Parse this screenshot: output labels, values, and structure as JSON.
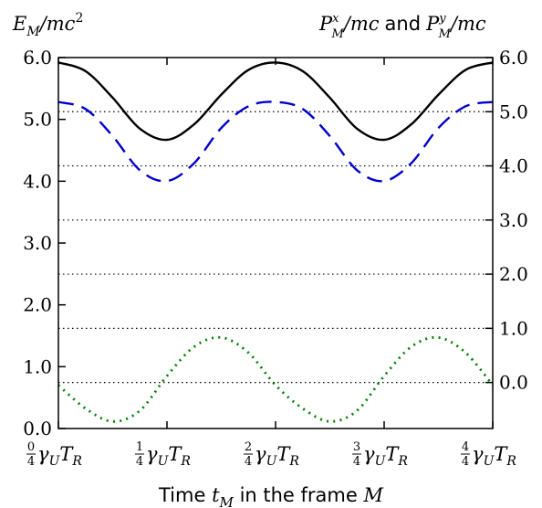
{
  "chart_data": {
    "type": "line",
    "x_tick_labels": [
      {
        "num": "0",
        "den": "4",
        "tail": "γ",
        "sub": "U",
        "tail2": "T",
        "sub2": "R"
      },
      {
        "num": "1",
        "den": "4",
        "tail": "γ",
        "sub": "U",
        "tail2": "T",
        "sub2": "R"
      },
      {
        "num": "2",
        "den": "4",
        "tail": "γ",
        "sub": "U",
        "tail2": "T",
        "sub2": "R"
      },
      {
        "num": "3",
        "den": "4",
        "tail": "γ",
        "sub": "U",
        "tail2": "T",
        "sub2": "R"
      },
      {
        "num": "4",
        "den": "4",
        "tail": "γ",
        "sub": "U",
        "tail2": "T",
        "sub2": "R"
      }
    ],
    "xlim": [
      0,
      1
    ],
    "left_axis": {
      "label": {
        "E": "E",
        "sub": "M",
        "rest": "/mc",
        "sup": "2"
      },
      "ylim": [
        0,
        6
      ],
      "ticks": [
        "0.0",
        "1.0",
        "2.0",
        "3.0",
        "4.0",
        "5.0",
        "6.0"
      ]
    },
    "right_axis": {
      "label": {
        "p1": "P",
        "sup1": "x",
        "sub1": "M",
        "mid": "/mc",
        "and": "and",
        "p2": "P",
        "sup2": "y",
        "sub2": "M",
        "end": "/mc"
      },
      "ylim": [
        -0.85,
        6.0
      ],
      "ticks": [
        "0.0",
        "1.0",
        "2.0",
        "3.0",
        "4.0",
        "5.0",
        "6.0"
      ],
      "gridlines": [
        0.0,
        1.0,
        2.0,
        3.0,
        4.0,
        5.0
      ]
    },
    "xlabel": {
      "pre": "Time ",
      "t": "t",
      "sub": "M",
      "post": " in the frame ",
      "M": "M"
    },
    "series": [
      {
        "axis": "left",
        "style": "solid",
        "color": "#000000",
        "x": [
          0,
          0.0625,
          0.125,
          0.1875,
          0.25,
          0.3125,
          0.375,
          0.4375,
          0.5,
          0.5625,
          0.625,
          0.6875,
          0.75,
          0.8125,
          0.875,
          0.9375,
          1
        ],
        "y": [
          5.92,
          5.78,
          5.35,
          4.85,
          4.67,
          4.92,
          5.4,
          5.8,
          5.92,
          5.78,
          5.35,
          4.85,
          4.67,
          4.92,
          5.4,
          5.8,
          5.92
        ]
      },
      {
        "axis": "right",
        "style": "dashed",
        "color": "#0000cc",
        "x": [
          0,
          0.0625,
          0.125,
          0.1875,
          0.25,
          0.3125,
          0.375,
          0.4375,
          0.5,
          0.5625,
          0.625,
          0.6875,
          0.75,
          0.8125,
          0.875,
          0.9375,
          1
        ],
        "y": [
          5.18,
          5.05,
          4.55,
          3.92,
          3.72,
          4.05,
          4.7,
          5.1,
          5.18,
          5.05,
          4.55,
          3.92,
          3.72,
          4.05,
          4.7,
          5.1,
          5.18
        ]
      },
      {
        "axis": "right",
        "style": "dotted",
        "color": "#008000",
        "x": [
          0,
          0.0625,
          0.125,
          0.1875,
          0.25,
          0.3125,
          0.375,
          0.4375,
          0.5,
          0.5625,
          0.625,
          0.6875,
          0.75,
          0.8125,
          0.875,
          0.9375,
          1
        ],
        "y": [
          -0.05,
          -0.48,
          -0.72,
          -0.52,
          0.12,
          0.66,
          0.83,
          0.55,
          -0.05,
          -0.48,
          -0.72,
          -0.52,
          0.12,
          0.66,
          0.83,
          0.55,
          -0.05
        ]
      }
    ],
    "grid": "right-axis horizontal dotted"
  }
}
